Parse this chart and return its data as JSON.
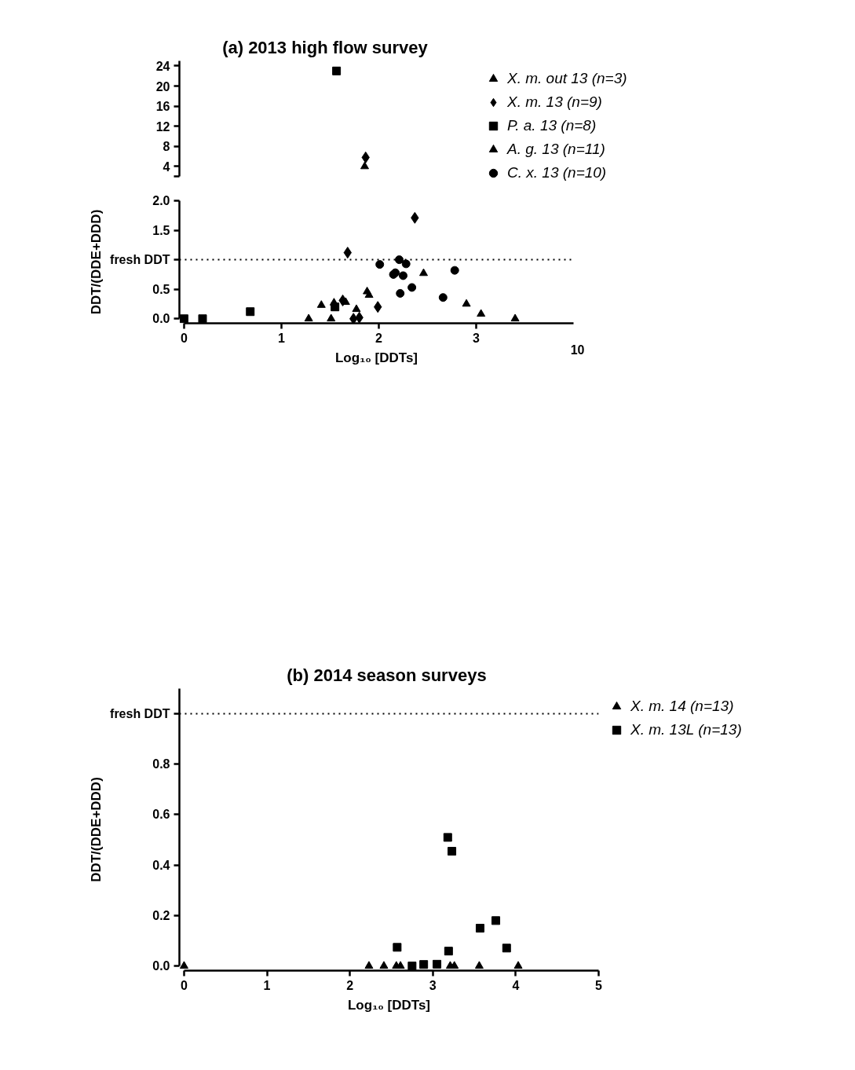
{
  "chart_data": [
    {
      "type": "scatter",
      "title": "(a)  2013 high flow survey",
      "xlim": [
        0,
        3
      ],
      "xticks": [
        0,
        1,
        2,
        3
      ],
      "ylim": [
        2,
        25
      ],
      "yticks": [
        {
          "value": 2,
          "label": null
        },
        4,
        8,
        12,
        16,
        20,
        24
      ],
      "tick_labels": "y",
      "grid": false,
      "series": [
        {
          "color": "#000000",
          "marker": "diamond",
          "x": [
            1.87
          ],
          "values": [
            5.8
          ]
        },
        {
          "color": "#000000",
          "marker": "square",
          "x": [
            1.57
          ],
          "values": [
            23
          ]
        },
        {
          "color": "#000000",
          "marker": "triangle",
          "x": [
            1.86
          ],
          "values": [
            4.0
          ]
        }
      ]
    },
    {
      "type": "scatter",
      "ylabel": "DDT/(DDE+DDD)",
      "xlabel": "Log₁₀ [DDTs]",
      "xlim": [
        0,
        4
      ],
      "ylim": [
        0,
        2
      ],
      "xticks": [
        0,
        1,
        2,
        3
      ],
      "annotations": [
        "10"
      ],
      "yticks": [
        {
          "value": 0,
          "label": "0.0"
        },
        {
          "value": 0.5,
          "label": "0.5"
        },
        {
          "value": 1.5,
          "label": "1.5"
        },
        {
          "value": 2,
          "label": "2.0"
        }
      ],
      "grid": false,
      "legend": "right",
      "ref_lines": [
        {
          "axis": "y",
          "value": 1.0,
          "label": "fresh DDT",
          "line_style": "dotted"
        }
      ],
      "series": [
        {
          "name": "X. m. out 13 (n=3)",
          "color": "#000000",
          "marker": "triangle",
          "x": [
            2.9,
            3.05,
            3.4
          ],
          "values": [
            0.25,
            0.08,
            0
          ]
        },
        {
          "name": "X. m. 13 (n=9)",
          "color": "#000000",
          "marker": "diamond",
          "x": [
            2.37,
            1.68,
            1.99,
            1.63,
            1.74,
            1.8
          ],
          "values": [
            1.71,
            1.12,
            0.2,
            0.31,
            0.0,
            0.02
          ]
        },
        {
          "name": "P. a. 13 (n=8)",
          "color": "#000000",
          "marker": "square",
          "x": [
            0,
            0.19,
            0.68,
            1.55
          ],
          "values": [
            0,
            0,
            0.12,
            0.2
          ]
        },
        {
          "name": "A. g. 13 (n=11)",
          "color": "#000000",
          "marker": "triangle",
          "x": [
            1.28,
            1.41,
            1.51,
            1.54,
            1.66,
            1.77,
            1.88,
            1.9,
            2.46
          ],
          "values": [
            0,
            0.23,
            0,
            0.27,
            0.28,
            0.16,
            0.46,
            0.4,
            0.77
          ]
        },
        {
          "name": "C. x. 13 (n=10)",
          "color": "#000000",
          "marker": "circle",
          "x": [
            2.01,
            2.21,
            2.28,
            2.17,
            2.15,
            2.25,
            2.34,
            2.22,
            2.66,
            2.78
          ],
          "values": [
            0.92,
            1.0,
            0.93,
            0.78,
            0.75,
            0.73,
            0.53,
            0.43,
            0.36,
            0.82
          ]
        }
      ]
    },
    {
      "type": "scatter",
      "title": "(b)  2014 season surveys",
      "ylabel": "DDT/(DDE+DDD)",
      "xlabel": "Log₁₀ [DDTs]",
      "xlim": [
        0,
        5
      ],
      "ylim": [
        0,
        1.1
      ],
      "xticks": [
        0,
        1,
        2,
        3,
        4,
        5
      ],
      "yticks": [
        {
          "value": 0,
          "label": "0.0"
        },
        {
          "value": 0.2,
          "label": "0.2"
        },
        {
          "value": 0.4,
          "label": "0.4"
        },
        {
          "value": 0.6,
          "label": "0.6"
        },
        {
          "value": 0.8,
          "label": "0.8"
        }
      ],
      "legend": "right",
      "grid": false,
      "ref_lines": [
        {
          "axis": "y",
          "value": 1.0,
          "label": "fresh DDT",
          "line_style": "dotted"
        }
      ],
      "series": [
        {
          "name": "X. m. 14 (n=13)",
          "color": "#000000",
          "marker": "triangle",
          "x": [
            0,
            2.23,
            2.41,
            2.56,
            2.61,
            3.21,
            3.26,
            3.56,
            4.03
          ],
          "values": [
            0,
            0,
            0,
            0,
            0,
            0,
            0,
            0,
            0
          ]
        },
        {
          "name": "X. m. 13L (n=13)",
          "color": "#000000",
          "marker": "square",
          "x": [
            3.18,
            3.23,
            2.57,
            3.19,
            3.57,
            3.76,
            3.89,
            2.75,
            2.89,
            3.05
          ],
          "values": [
            0.51,
            0.455,
            0.074,
            0.059,
            0.15,
            0.18,
            0.071,
            0,
            0.006,
            0.007
          ]
        }
      ]
    }
  ]
}
